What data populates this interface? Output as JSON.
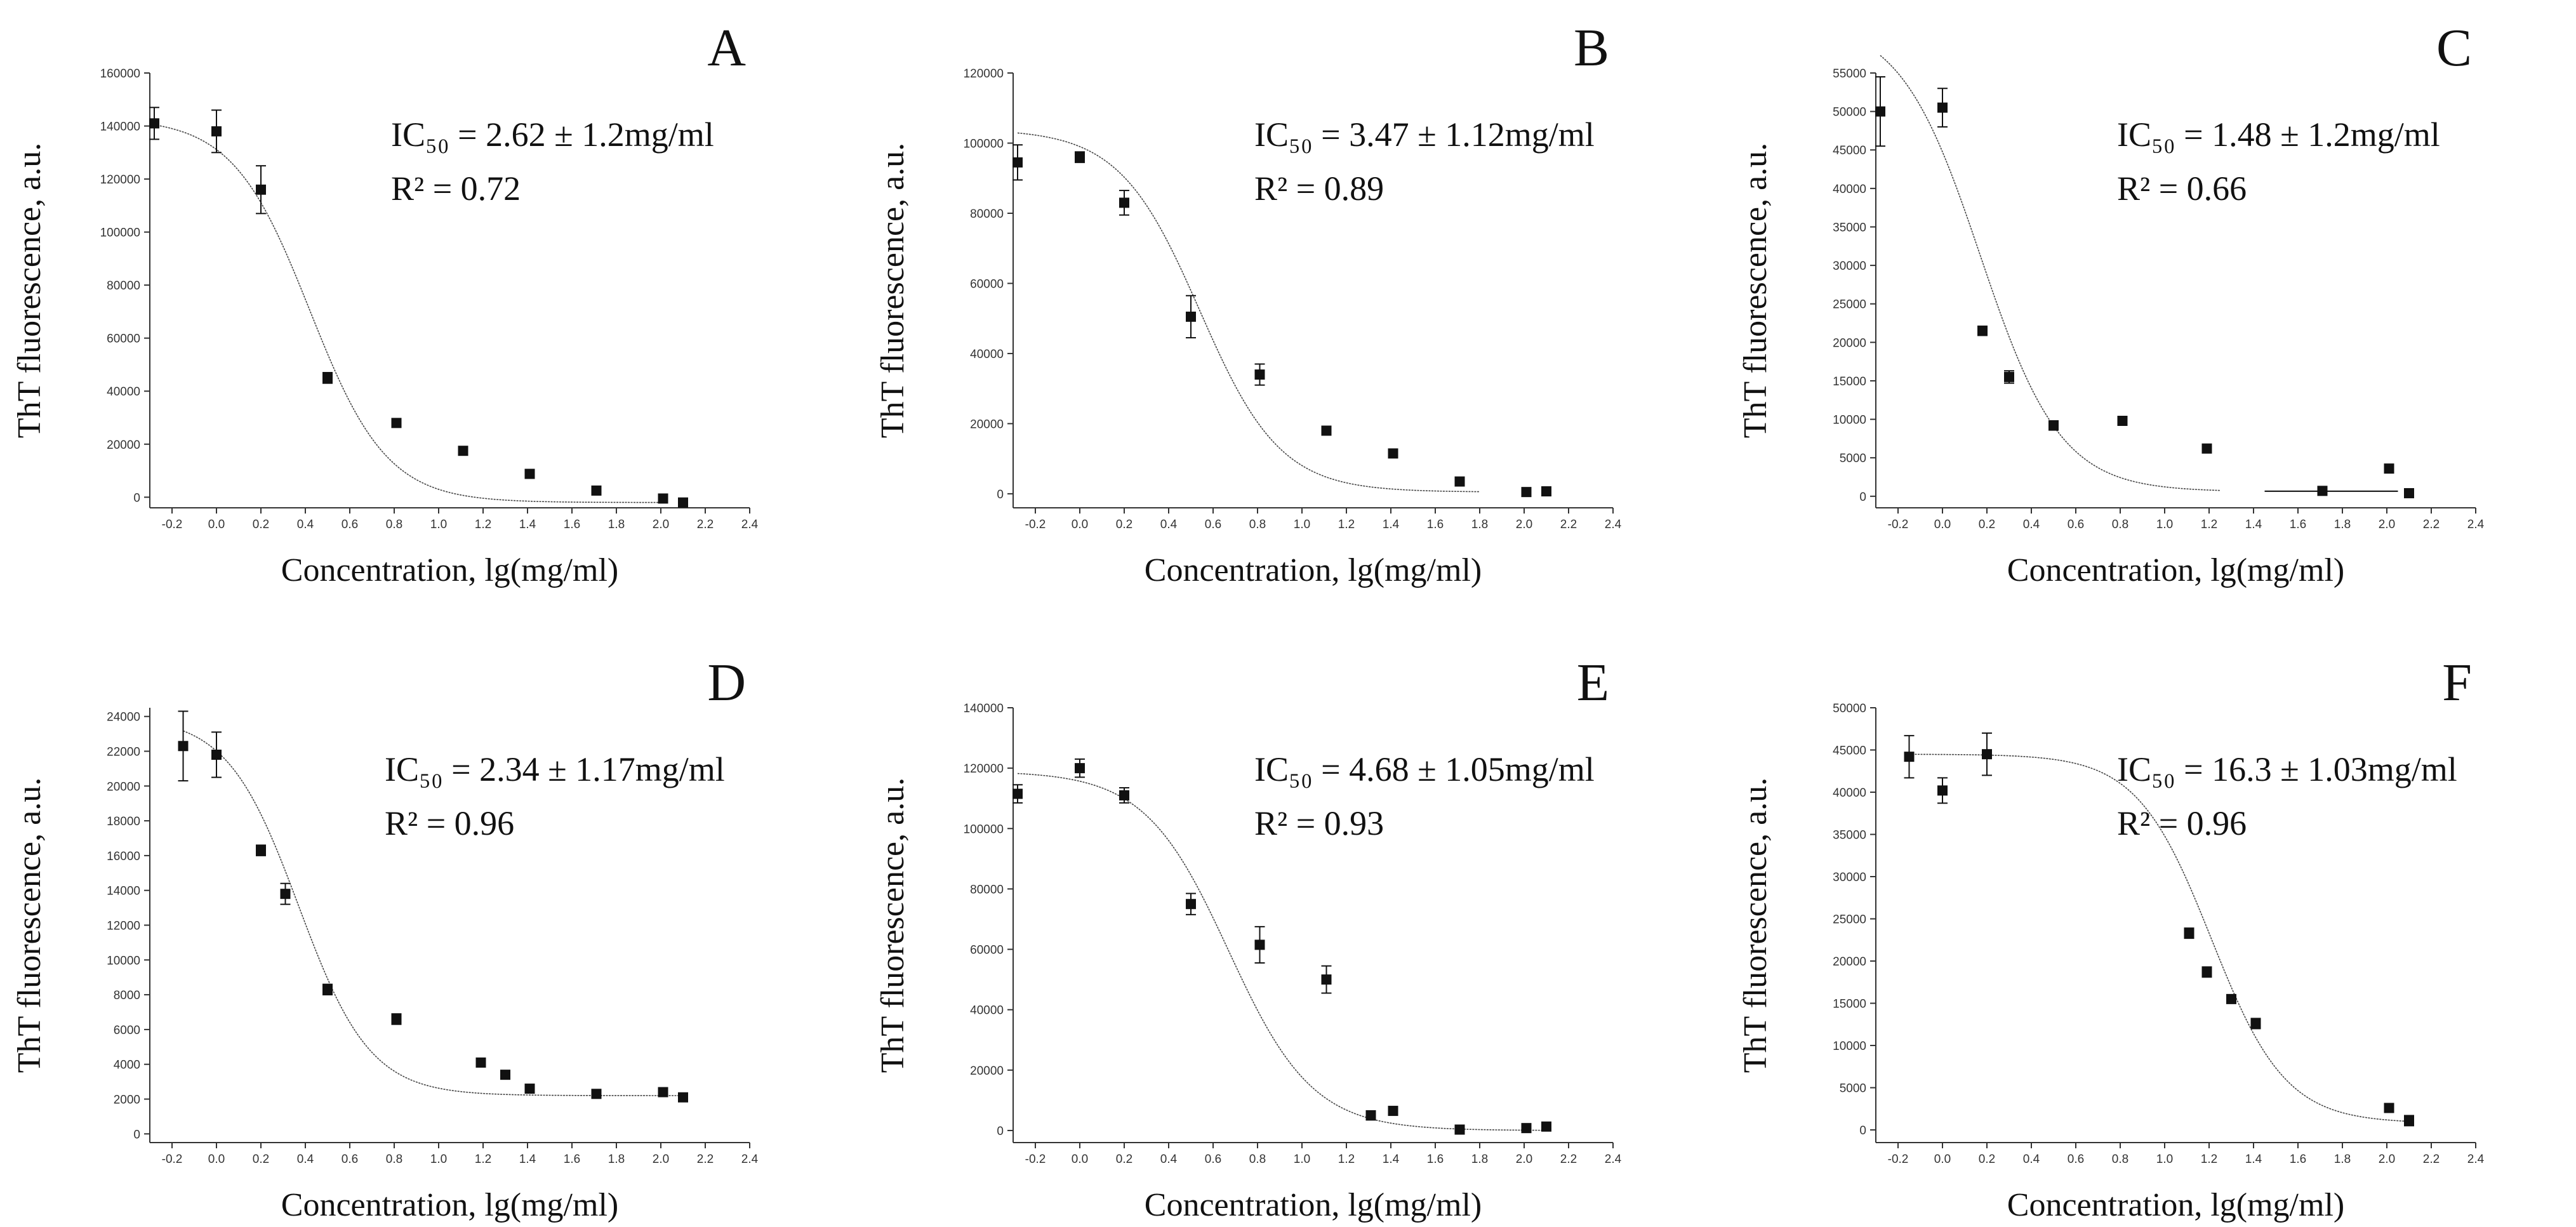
{
  "chart_data": [
    {
      "type": "scatter",
      "panel_label": "A",
      "annotation_ic50": "IC₅₀ = 2.62 ± 1.2mg/ml",
      "annotation_r2": "R² = 0.72",
      "xlabel": "Concentration, lg(mg/ml)",
      "ylabel": "ThT fluorescence, a.u.",
      "xlim": [
        -0.3,
        2.4
      ],
      "ylim": [
        -4000,
        160000
      ],
      "xticks": [
        -0.2,
        0.0,
        0.2,
        0.4,
        0.6,
        0.8,
        1.0,
        1.2,
        1.4,
        1.6,
        1.8,
        2.0,
        2.2,
        2.4
      ],
      "xtick_labels": [
        "-0.2",
        "0.0",
        "0.2",
        "0.4",
        "0.6",
        "0.8",
        "1.0",
        "1.2",
        "1.4",
        "1.6",
        "1.8",
        "2.0",
        "2.2",
        "2.4"
      ],
      "yticks": [
        0,
        20000,
        40000,
        60000,
        80000,
        100000,
        120000,
        140000,
        160000
      ],
      "ytick_labels": [
        "0",
        "20000",
        "40000",
        "60000",
        "80000",
        "100000",
        "120000",
        "140000",
        "160000"
      ],
      "points": [
        {
          "x": -0.28,
          "y": 141000,
          "err": 6000
        },
        {
          "x": 0.0,
          "y": 138000,
          "err": 8000
        },
        {
          "x": 0.2,
          "y": 116000,
          "err": 9000
        },
        {
          "x": 0.5,
          "y": 45000,
          "err": 2000
        },
        {
          "x": 0.81,
          "y": 28000,
          "err": 1000
        },
        {
          "x": 1.11,
          "y": 17500,
          "err": 1500
        },
        {
          "x": 1.41,
          "y": 8800,
          "err": 800
        },
        {
          "x": 1.71,
          "y": 2500,
          "err": 500
        },
        {
          "x": 2.01,
          "y": -500,
          "err": 400
        },
        {
          "x": 2.1,
          "y": -2000,
          "err": 400
        }
      ],
      "fit_curve": {
        "top": 143000,
        "bottom": -2000,
        "logx0": 0.42,
        "slope": 2.5,
        "x_range": [
          -0.28,
          2.0
        ]
      }
    },
    {
      "type": "scatter",
      "panel_label": "B",
      "annotation_ic50": "IC₅₀ = 3.47 ± 1.12mg/ml",
      "annotation_r2": "R² = 0.89",
      "xlabel": "Concentration, lg(mg/ml)",
      "ylabel": "ThT fluorescence, a.u.",
      "xlim": [
        -0.3,
        2.4
      ],
      "ylim": [
        -4000,
        120000
      ],
      "xticks": [
        -0.2,
        0.0,
        0.2,
        0.4,
        0.6,
        0.8,
        1.0,
        1.2,
        1.4,
        1.6,
        1.8,
        2.0,
        2.2,
        2.4
      ],
      "xtick_labels": [
        "-0.2",
        "0.0",
        "0.2",
        "0.4",
        "0.6",
        "0.8",
        "1.0",
        "1.2",
        "1.4",
        "1.6",
        "1.8",
        "2.0",
        "2.2",
        "2.4"
      ],
      "yticks": [
        0,
        20000,
        40000,
        60000,
        80000,
        100000,
        120000
      ],
      "ytick_labels": [
        "0",
        "20000",
        "40000",
        "60000",
        "80000",
        "100000",
        "120000"
      ],
      "points": [
        {
          "x": -0.28,
          "y": 94500,
          "err": 5000
        },
        {
          "x": 0.0,
          "y": 96000,
          "err": 1500
        },
        {
          "x": 0.2,
          "y": 83000,
          "err": 3500
        },
        {
          "x": 0.5,
          "y": 50500,
          "err": 6000
        },
        {
          "x": 0.81,
          "y": 34000,
          "err": 3000
        },
        {
          "x": 1.11,
          "y": 18000,
          "err": 1000
        },
        {
          "x": 1.41,
          "y": 11500,
          "err": 800
        },
        {
          "x": 1.71,
          "y": 3500,
          "err": 800
        },
        {
          "x": 2.01,
          "y": 500,
          "err": 300
        },
        {
          "x": 2.1,
          "y": 700,
          "err": 300
        }
      ],
      "fit_curve": {
        "top": 104000,
        "bottom": 500,
        "logx0": 0.54,
        "slope": 2.4,
        "x_range": [
          -0.28,
          1.8
        ]
      }
    },
    {
      "type": "scatter",
      "panel_label": "C",
      "annotation_ic50": "IC₅₀ = 1.48 ± 1.2mg/ml",
      "annotation_r2": "R² = 0.66",
      "xlabel": "Concentration, lg(mg/ml)",
      "ylabel": "ThT fluorescence, a.u.",
      "xlim": [
        -0.3,
        2.4
      ],
      "ylim": [
        -1500,
        55000
      ],
      "xticks": [
        -0.2,
        0.0,
        0.2,
        0.4,
        0.6,
        0.8,
        1.0,
        1.2,
        1.4,
        1.6,
        1.8,
        2.0,
        2.2,
        2.4
      ],
      "xtick_labels": [
        "-0.2",
        "0.0",
        "0.2",
        "0.4",
        "0.6",
        "0.8",
        "1.0",
        "1.2",
        "1.4",
        "1.6",
        "1.8",
        "2.0",
        "2.2",
        "2.4"
      ],
      "yticks": [
        0,
        5000,
        10000,
        15000,
        20000,
        25000,
        30000,
        35000,
        40000,
        45000,
        50000,
        55000
      ],
      "ytick_labels": [
        "0",
        "5000",
        "10000",
        "15000",
        "20000",
        "25000",
        "30000",
        "35000",
        "40000",
        "45000",
        "50000",
        "55000"
      ],
      "points": [
        {
          "x": -0.28,
          "y": 50000,
          "err": 4500
        },
        {
          "x": 0.0,
          "y": 50500,
          "err": 2500
        },
        {
          "x": 0.18,
          "y": 21500,
          "err": 600
        },
        {
          "x": 0.3,
          "y": 15500,
          "err": 800
        },
        {
          "x": 0.5,
          "y": 9200,
          "err": 600
        },
        {
          "x": 0.81,
          "y": 9800,
          "err": 500
        },
        {
          "x": 1.19,
          "y": 6200,
          "err": 500
        },
        {
          "x": 1.71,
          "y": 700,
          "err": 300
        },
        {
          "x": 2.01,
          "y": 3600,
          "err": 500
        },
        {
          "x": 2.1,
          "y": 400,
          "err": 300
        }
      ],
      "fit_curve": {
        "top": 62000,
        "bottom": 600,
        "logx0": 0.17,
        "slope": 2.4,
        "x_range": [
          -0.28,
          1.25
        ],
        "plateau_x_range": [
          1.45,
          2.05
        ]
      }
    },
    {
      "type": "scatter",
      "panel_label": "D",
      "annotation_ic50": "IC₅₀ = 2.34 ± 1.17mg/ml",
      "annotation_r2": "R² = 0.96",
      "xlabel": "Concentration, lg(mg/ml)",
      "ylabel": "ThT fluorescence, a.u.",
      "xlim": [
        -0.3,
        2.4
      ],
      "ylim": [
        -500,
        24500
      ],
      "xticks": [
        -0.2,
        0.0,
        0.2,
        0.4,
        0.6,
        0.8,
        1.0,
        1.2,
        1.4,
        1.6,
        1.8,
        2.0,
        2.2,
        2.4
      ],
      "xtick_labels": [
        "-0.2",
        "0.0",
        "0.2",
        "0.4",
        "0.6",
        "0.8",
        "1.0",
        "1.2",
        "1.4",
        "1.6",
        "1.8",
        "2.0",
        "2.2",
        "2.4"
      ],
      "yticks": [
        0,
        2000,
        4000,
        6000,
        8000,
        10000,
        12000,
        14000,
        16000,
        18000,
        20000,
        22000,
        24000
      ],
      "ytick_labels": [
        "0",
        "2000",
        "4000",
        "6000",
        "8000",
        "10000",
        "12000",
        "14000",
        "16000",
        "18000",
        "20000",
        "22000",
        "24000"
      ],
      "points": [
        {
          "x": -0.15,
          "y": 22300,
          "err": 2000
        },
        {
          "x": 0.0,
          "y": 21800,
          "err": 1300
        },
        {
          "x": 0.2,
          "y": 16300,
          "err": 300
        },
        {
          "x": 0.31,
          "y": 13800,
          "err": 600
        },
        {
          "x": 0.5,
          "y": 8300,
          "err": 300
        },
        {
          "x": 0.81,
          "y": 6600,
          "err": 300
        },
        {
          "x": 1.19,
          "y": 4100,
          "err": 200
        },
        {
          "x": 1.3,
          "y": 3400,
          "err": 200
        },
        {
          "x": 1.41,
          "y": 2600,
          "err": 200
        },
        {
          "x": 1.71,
          "y": 2300,
          "err": 150
        },
        {
          "x": 2.01,
          "y": 2400,
          "err": 150
        },
        {
          "x": 2.1,
          "y": 2100,
          "err": 200
        }
      ],
      "fit_curve": {
        "top": 24000,
        "bottom": 2200,
        "logx0": 0.37,
        "slope": 2.7,
        "x_range": [
          -0.15,
          2.1
        ]
      }
    },
    {
      "type": "scatter",
      "panel_label": "E",
      "annotation_ic50": "IC₅₀ = 4.68 ± 1.05mg/ml",
      "annotation_r2": "R² = 0.93",
      "xlabel": "Concentration, lg(mg/ml)",
      "ylabel": "ThT fluorescence, a.u.",
      "xlim": [
        -0.3,
        2.4
      ],
      "ylim": [
        -4000,
        140000
      ],
      "xticks": [
        -0.2,
        0.0,
        0.2,
        0.4,
        0.6,
        0.8,
        1.0,
        1.2,
        1.4,
        1.6,
        1.8,
        2.0,
        2.2,
        2.4
      ],
      "xtick_labels": [
        "-0.2",
        "0.0",
        "0.2",
        "0.4",
        "0.6",
        "0.8",
        "1.0",
        "1.2",
        "1.4",
        "1.6",
        "1.8",
        "2.0",
        "2.2",
        "2.4"
      ],
      "yticks": [
        0,
        20000,
        40000,
        60000,
        80000,
        100000,
        120000,
        140000
      ],
      "ytick_labels": [
        "0",
        "20000",
        "40000",
        "60000",
        "80000",
        "100000",
        "120000",
        "140000"
      ],
      "points": [
        {
          "x": -0.28,
          "y": 111500,
          "err": 3000
        },
        {
          "x": 0.0,
          "y": 120000,
          "err": 3000
        },
        {
          "x": 0.2,
          "y": 111000,
          "err": 2500
        },
        {
          "x": 0.5,
          "y": 75000,
          "err": 3500
        },
        {
          "x": 0.81,
          "y": 61500,
          "err": 6000
        },
        {
          "x": 1.11,
          "y": 50000,
          "err": 4500
        },
        {
          "x": 1.31,
          "y": 5000,
          "err": 1500
        },
        {
          "x": 1.41,
          "y": 6500,
          "err": 1000
        },
        {
          "x": 1.71,
          "y": 300,
          "err": 400
        },
        {
          "x": 2.01,
          "y": 800,
          "err": 400
        },
        {
          "x": 2.1,
          "y": 1300,
          "err": 600
        }
      ],
      "fit_curve": {
        "top": 119000,
        "bottom": 0,
        "logx0": 0.67,
        "slope": 2.3,
        "x_range": [
          -0.28,
          2.1
        ]
      }
    },
    {
      "type": "scatter",
      "panel_label": "F",
      "annotation_ic50": "IC₅₀ = 16.3 ± 1.03mg/ml",
      "annotation_r2": "R² = 0.96",
      "xlabel": "Concentration, lg(mg/ml)",
      "ylabel": "ThT fluorescence, a.u.",
      "xlim": [
        -0.3,
        2.4
      ],
      "ylim": [
        -1500,
        50000
      ],
      "xticks": [
        -0.2,
        0.0,
        0.2,
        0.4,
        0.6,
        0.8,
        1.0,
        1.2,
        1.4,
        1.6,
        1.8,
        2.0,
        2.2,
        2.4
      ],
      "xtick_labels": [
        "-0.2",
        "0.0",
        "0.2",
        "0.4",
        "0.6",
        "0.8",
        "1.0",
        "1.2",
        "1.4",
        "1.6",
        "1.8",
        "2.0",
        "2.2",
        "2.4"
      ],
      "yticks": [
        0,
        5000,
        10000,
        15000,
        20000,
        25000,
        30000,
        35000,
        40000,
        45000,
        50000
      ],
      "ytick_labels": [
        "0",
        "5000",
        "10000",
        "15000",
        "20000",
        "25000",
        "30000",
        "35000",
        "40000",
        "45000",
        "50000"
      ],
      "points": [
        {
          "x": -0.15,
          "y": 44200,
          "err": 2500
        },
        {
          "x": 0.0,
          "y": 40200,
          "err": 1500
        },
        {
          "x": 0.2,
          "y": 44500,
          "err": 2500
        },
        {
          "x": 1.11,
          "y": 23300,
          "err": 600
        },
        {
          "x": 1.19,
          "y": 18700,
          "err": 600
        },
        {
          "x": 1.3,
          "y": 15500,
          "err": 400
        },
        {
          "x": 1.41,
          "y": 12600,
          "err": 600
        },
        {
          "x": 2.01,
          "y": 2600,
          "err": 300
        },
        {
          "x": 2.1,
          "y": 1100,
          "err": 600
        }
      ],
      "fit_curve": {
        "top": 44500,
        "bottom": 800,
        "logx0": 1.21,
        "slope": 2.6,
        "x_range": [
          -0.15,
          2.1
        ]
      }
    }
  ]
}
